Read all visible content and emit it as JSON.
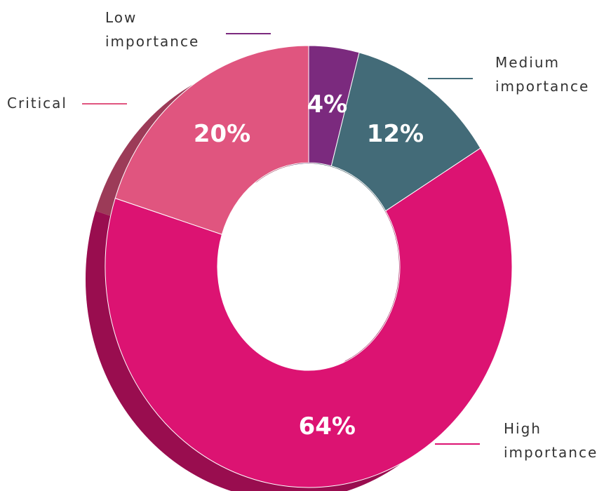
{
  "chart_data": {
    "type": "pie",
    "categories": [
      "Low importance",
      "Medium importance",
      "High importance",
      "Critical"
    ],
    "values": [
      4,
      12,
      64,
      20
    ],
    "value_labels": [
      "4%",
      "12%",
      "64%",
      "20%"
    ],
    "colors": [
      "#7b2a7e",
      "#436b78",
      "#dc1372",
      "#e0557f"
    ]
  }
}
